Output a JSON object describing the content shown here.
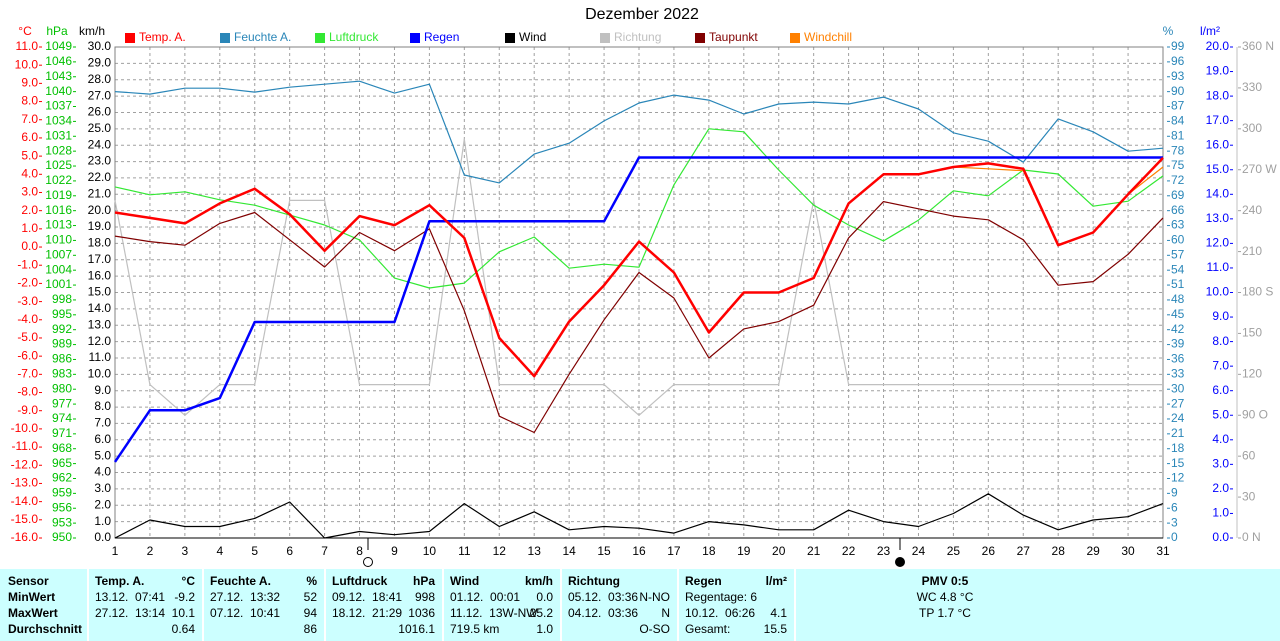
{
  "chart_data": {
    "type": "line",
    "title": "Dezember 2022",
    "x": [
      1,
      2,
      3,
      4,
      5,
      6,
      7,
      8,
      9,
      10,
      11,
      12,
      13,
      14,
      15,
      16,
      17,
      18,
      19,
      20,
      21,
      22,
      23,
      24,
      25,
      26,
      27,
      28,
      29,
      30,
      31
    ],
    "xlim": [
      1,
      31
    ],
    "xticks": [
      1,
      2,
      3,
      4,
      5,
      6,
      7,
      8,
      9,
      10,
      11,
      12,
      13,
      14,
      15,
      16,
      17,
      18,
      19,
      20,
      21,
      22,
      23,
      24,
      25,
      26,
      27,
      28,
      29,
      30,
      31
    ],
    "grid": true,
    "axes": [
      {
        "id": "temp",
        "label": "°C",
        "color": "#ff0000",
        "lim": [
          -16,
          11
        ],
        "ticks": [
          {
            "value": -16,
            "label": "-16.0"
          },
          {
            "value": -15,
            "label": "-15.0"
          },
          {
            "value": -14,
            "label": "-14.0"
          },
          {
            "value": -13,
            "label": "-13.0"
          },
          {
            "value": -12,
            "label": "-12.0"
          },
          {
            "value": -11,
            "label": "-11.0"
          },
          {
            "value": -10,
            "label": "-10.0"
          },
          {
            "value": -9,
            "label": "-9.0"
          },
          {
            "value": -8,
            "label": "-8.0"
          },
          {
            "value": -7,
            "label": "-7.0"
          },
          {
            "value": -6,
            "label": "-6.0"
          },
          {
            "value": -5,
            "label": "-5.0"
          },
          {
            "value": -4,
            "label": "-4.0"
          },
          {
            "value": -3,
            "label": "-3.0"
          },
          {
            "value": -2,
            "label": "-2.0"
          },
          {
            "value": -1,
            "label": "-1.0"
          },
          {
            "value": 0,
            "label": "0.0"
          },
          {
            "value": 1,
            "label": "1.0"
          },
          {
            "value": 2,
            "label": "2.0"
          },
          {
            "value": 3,
            "label": "3.0"
          },
          {
            "value": 4,
            "label": "4.0"
          },
          {
            "value": 5,
            "label": "5.0"
          },
          {
            "value": 6,
            "label": "6.0"
          },
          {
            "value": 7,
            "label": "7.0"
          },
          {
            "value": 8,
            "label": "8.0"
          },
          {
            "value": 9,
            "label": "9.0"
          },
          {
            "value": 10,
            "label": "10.0"
          },
          {
            "value": 11,
            "label": "11.0"
          }
        ]
      },
      {
        "id": "hpa",
        "label": "hPa",
        "color": "#00c000",
        "lim": [
          950,
          1049
        ],
        "ticks": [
          950,
          953,
          956,
          959,
          962,
          965,
          968,
          971,
          974,
          977,
          980,
          983,
          986,
          989,
          992,
          995,
          998,
          1001,
          1004,
          1007,
          1010,
          1013,
          1016,
          1019,
          1022,
          1025,
          1028,
          1031,
          1034,
          1037,
          1040,
          1043,
          1046,
          1049
        ]
      },
      {
        "id": "kmh",
        "label": "km/h",
        "color": "#000000",
        "grid": true,
        "lim": [
          0,
          30
        ],
        "ticks": [
          {
            "value": 0,
            "label": "0.0"
          },
          {
            "value": 1,
            "label": "1.0"
          },
          {
            "value": 2,
            "label": "2.0"
          },
          {
            "value": 3,
            "label": "3.0"
          },
          {
            "value": 4,
            "label": "4.0"
          },
          {
            "value": 5,
            "label": "5.0"
          },
          {
            "value": 6,
            "label": "6.0"
          },
          {
            "value": 7,
            "label": "7.0"
          },
          {
            "value": 8,
            "label": "8.0"
          },
          {
            "value": 9,
            "label": "9.0"
          },
          {
            "value": 10,
            "label": "10.0"
          },
          {
            "value": 11,
            "label": "11.0"
          },
          {
            "value": 12,
            "label": "12.0"
          },
          {
            "value": 13,
            "label": "13.0"
          },
          {
            "value": 14,
            "label": "14.0"
          },
          {
            "value": 15,
            "label": "15.0"
          },
          {
            "value": 16,
            "label": "16.0"
          },
          {
            "value": 17,
            "label": "17.0"
          },
          {
            "value": 18,
            "label": "18.0"
          },
          {
            "value": 19,
            "label": "19.0"
          },
          {
            "value": 20,
            "label": "20.0"
          },
          {
            "value": 21,
            "label": "21.0"
          },
          {
            "value": 22,
            "label": "22.0"
          },
          {
            "value": 23,
            "label": "23.0"
          },
          {
            "value": 24,
            "label": "24.0"
          },
          {
            "value": 25,
            "label": "25.0"
          },
          {
            "value": 26,
            "label": "26.0"
          },
          {
            "value": 27,
            "label": "27.0"
          },
          {
            "value": 28,
            "label": "28.0"
          },
          {
            "value": 29,
            "label": "29.0"
          },
          {
            "value": 30,
            "label": "30.0"
          }
        ]
      },
      {
        "id": "pct",
        "label": "%",
        "color": "#2a86b8",
        "lim": [
          0,
          99
        ],
        "ticks": [
          0,
          3,
          6,
          9,
          12,
          15,
          18,
          21,
          24,
          27,
          30,
          33,
          36,
          39,
          42,
          45,
          48,
          51,
          54,
          57,
          60,
          63,
          66,
          69,
          72,
          75,
          78,
          81,
          84,
          87,
          90,
          93,
          96,
          99
        ]
      },
      {
        "id": "rain",
        "label": "l/m²",
        "color": "#0000ff",
        "lim": [
          0,
          20
        ],
        "ticks": [
          {
            "value": 0,
            "label": "0.0"
          },
          {
            "value": 1,
            "label": "1.0"
          },
          {
            "value": 2,
            "label": "2.0"
          },
          {
            "value": 3,
            "label": "3.0"
          },
          {
            "value": 4,
            "label": "4.0"
          },
          {
            "value": 5,
            "label": "5.0"
          },
          {
            "value": 6,
            "label": "6.0"
          },
          {
            "value": 7,
            "label": "7.0"
          },
          {
            "value": 8,
            "label": "8.0"
          },
          {
            "value": 9,
            "label": "9.0"
          },
          {
            "value": 10,
            "label": "10.0"
          },
          {
            "value": 11,
            "label": "11.0"
          },
          {
            "value": 12,
            "label": "12.0"
          },
          {
            "value": 13,
            "label": "13.0"
          },
          {
            "value": 14,
            "label": "14.0"
          },
          {
            "value": 15,
            "label": "15.0"
          },
          {
            "value": 16,
            "label": "16.0"
          },
          {
            "value": 17,
            "label": "17.0"
          },
          {
            "value": 18,
            "label": "18.0"
          },
          {
            "value": 19,
            "label": "19.0"
          },
          {
            "value": 20,
            "label": "20.0"
          }
        ]
      },
      {
        "id": "dir",
        "color": "#a0a0a0",
        "lim": [
          0,
          360
        ],
        "ticks": [
          {
            "value": 0,
            "label": "0 N"
          },
          30,
          60,
          {
            "value": 90,
            "label": "90 O"
          },
          120,
          150,
          {
            "value": 180,
            "label": "180 S"
          },
          210,
          240,
          {
            "value": 270,
            "label": "270 W"
          },
          300,
          330,
          {
            "value": 360,
            "label": "360 N"
          }
        ]
      }
    ],
    "series": [
      {
        "name": "Temp. A.",
        "color": "#ff0000",
        "axis": "temp",
        "values": [
          1.9,
          1.6,
          1.3,
          2.4,
          3.2,
          1.8,
          -0.2,
          1.7,
          1.2,
          2.3,
          0.5,
          -5.0,
          -7.1,
          -4.1,
          -2.1,
          0.3,
          -1.4,
          -4.7,
          -2.5,
          -2.5,
          -1.7,
          2.4,
          4.0,
          4.0,
          4.4,
          4.6,
          4.3,
          0.1,
          0.8,
          2.9,
          4.9
        ]
      },
      {
        "name": "Feuchte A.",
        "color": "#2a86b8",
        "axis": "pct",
        "values": [
          90,
          89.5,
          90.7,
          90.7,
          89.9,
          90.9,
          91.5,
          92.1,
          89.7,
          91.5,
          73.2,
          71.6,
          77.4,
          79.6,
          84.1,
          87.7,
          89.3,
          88.3,
          85.5,
          87.5,
          87.9,
          87.5,
          88.9,
          86.5,
          81.7,
          80,
          75.8,
          84.5,
          81.9,
          78,
          78.6
        ]
      },
      {
        "name": "Luftdruck",
        "color": "#33e833",
        "axis": "hpa",
        "values": [
          1020.8,
          1019.2,
          1019.8,
          1018.2,
          1017.1,
          1015.1,
          1013.1,
          1010.1,
          1002.4,
          1000.4,
          1001.4,
          1007.7,
          1010.7,
          1004.4,
          1005.2,
          1004.6,
          1021.2,
          1032.5,
          1031.9,
          1024.2,
          1017.1,
          1013.1,
          1009.9,
          1014.1,
          1020,
          1019,
          1024.2,
          1023.4,
          1016.9,
          1017.9,
          1023
        ]
      },
      {
        "name": "Regen",
        "color": "#0000ff",
        "axis": "rain",
        "values": [
          3.1,
          5.2,
          5.2,
          5.7,
          8.8,
          8.8,
          8.8,
          8.8,
          8.8,
          12.9,
          12.9,
          12.9,
          12.9,
          12.9,
          12.9,
          15.5,
          15.5,
          15.5,
          15.5,
          15.5,
          15.5,
          15.5,
          15.5,
          15.5,
          15.5,
          15.5,
          15.5,
          15.5,
          15.5,
          15.5,
          15.5
        ]
      },
      {
        "name": "Wind",
        "color": "#000000",
        "axis": "kmh",
        "values": [
          0,
          1.1,
          0.7,
          0.7,
          1.2,
          2.2,
          0,
          0.4,
          0.2,
          0.4,
          2.1,
          0.7,
          1.6,
          0.5,
          0.7,
          0.6,
          0.3,
          1,
          0.8,
          0.5,
          0.5,
          1.7,
          1,
          0.7,
          1.5,
          2.7,
          1.4,
          0.5,
          1.1,
          1.3,
          2.1
        ]
      },
      {
        "name": "Richtung",
        "color": "#c0c0c0",
        "axis": "dir",
        "values": [
          247.5,
          112.5,
          90,
          112.5,
          112.5,
          247.5,
          247.5,
          112.5,
          112.5,
          112.5,
          292.5,
          112.5,
          112.5,
          112.5,
          112.5,
          90,
          112.5,
          112.5,
          112.5,
          112.5,
          247.5,
          112.5,
          112.5,
          112.5,
          112.5,
          112.5,
          112.5,
          112.5,
          112.5,
          112.5,
          112.5
        ]
      },
      {
        "name": "Taupunkt",
        "color": "#800000",
        "axis": "temp",
        "values": [
          0.6,
          0.3,
          0.1,
          1.3,
          1.9,
          0.4,
          -1.1,
          0.8,
          -0.2,
          1.0,
          -3.5,
          -9.3,
          -10.2,
          -7.0,
          -4.0,
          -1.4,
          -2.8,
          -6.1,
          -4.5,
          -4.1,
          -3.2,
          0.5,
          2.5,
          2.1,
          1.7,
          1.5,
          0.4,
          -2.1,
          -1.9,
          -0.4,
          1.6
        ]
      },
      {
        "name": "Windchill",
        "color": "#ff8000",
        "axis": "temp",
        "values": [
          1.9,
          1.6,
          1.3,
          2.4,
          3.2,
          1.8,
          -0.2,
          1.7,
          1.2,
          2.3,
          0.5,
          -5.0,
          -7.1,
          -4.1,
          -2.1,
          0.3,
          -1.4,
          -4.7,
          -2.5,
          -2.5,
          -1.7,
          2.4,
          4.0,
          4.0,
          4.4,
          4.3,
          4.2,
          0.1,
          0.8,
          2.9,
          4.4
        ]
      }
    ]
  },
  "stats": {
    "labels": [
      "Sensor",
      "MinWert",
      "MaxWert",
      "Durchschnitt"
    ],
    "columns": [
      {
        "name": "Temp. A.",
        "unit": "°C",
        "cells": [
          [
            "13.12.  07:41",
            "-9.2"
          ],
          [
            "27.12.  13:14",
            "10.1"
          ],
          [
            "0.64"
          ]
        ]
      },
      {
        "name": "Feuchte A.",
        "unit": "%",
        "cells": [
          [
            "27.12.  13:32",
            "52"
          ],
          [
            "07.12.  10:41",
            "94"
          ],
          [
            "86"
          ]
        ]
      },
      {
        "name": "Luftdruck",
        "unit": "hPa",
        "cells": [
          [
            "09.12.  18:41",
            "998"
          ],
          [
            "18.12.  21:29",
            "1036"
          ],
          [
            "1016.1"
          ]
        ]
      },
      {
        "name": "Wind",
        "unit": "km/h",
        "cells": [
          [
            "01.12.  00:01",
            "0.0"
          ],
          [
            "11.12.  13W-NW",
            "25.2"
          ],
          [
            "719.5 km",
            "1.0"
          ]
        ]
      },
      {
        "name": "Richtung",
        "cells": [
          [
            "05.12.  03:36",
            "N-NO"
          ],
          [
            "04.12.  03:36",
            "N"
          ],
          [
            "O-SO"
          ]
        ]
      },
      {
        "name": "Regen",
        "unit": "l/m²",
        "cells": [
          [
            "Regentage: 6"
          ],
          [
            "10.12.  06:26",
            "4.1"
          ],
          [
            "Gesamt:",
            "15.5"
          ]
        ]
      }
    ],
    "pmv": [
      "PMV 0:5",
      "WC 4.8 °C",
      "TP 1.7 °C"
    ]
  }
}
